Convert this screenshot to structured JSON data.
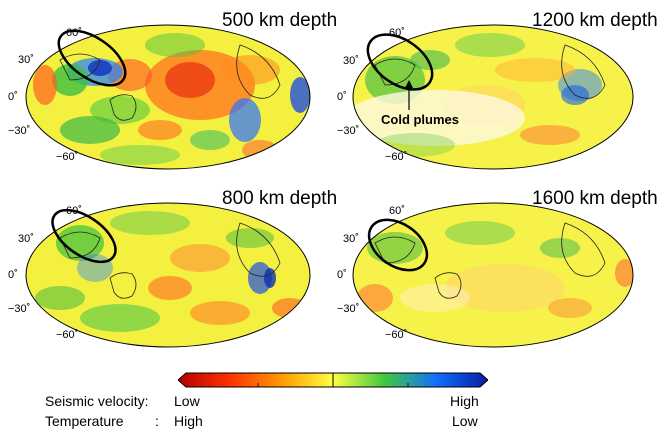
{
  "panels": [
    {
      "title": "500 km depth"
    },
    {
      "title": "1200 km depth",
      "annotation": "Cold plumes"
    },
    {
      "title": "800 km depth"
    },
    {
      "title": "1600 km depth"
    }
  ],
  "lat_labels": [
    "60˚",
    "30˚",
    "0˚",
    "−30˚",
    "−60˚"
  ],
  "colorbar": {
    "colors": [
      "#b40000",
      "#ff3000",
      "#ff9a00",
      "#ffff40",
      "#40c840",
      "#1070ff",
      "#0a1aa0"
    ]
  },
  "legend": {
    "velocity_label": "Seismic velocity:",
    "velocity_low": "Low",
    "velocity_high": "High",
    "temperature_label": "Temperature",
    "temperature_sep": ":",
    "temperature_high": "High",
    "temperature_low": "Low"
  }
}
